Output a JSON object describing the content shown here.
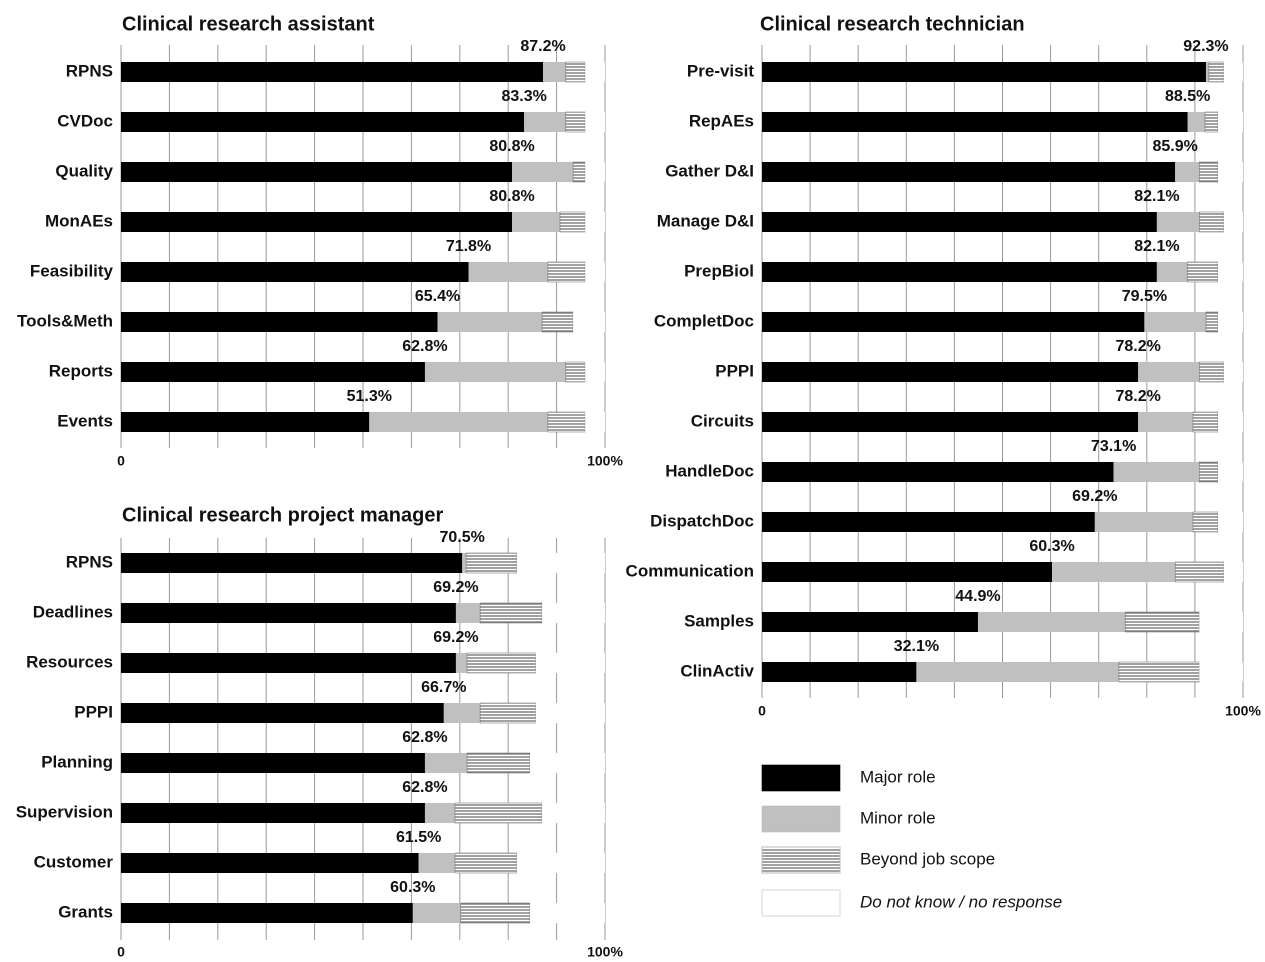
{
  "chart_data": [
    {
      "type": "stacked-bar-horizontal",
      "title": "Clinical research assistant",
      "categories": [
        "RPNS",
        "CVDoc",
        "Quality",
        "MonAEs",
        "Feasibility",
        "Tools&Meth",
        "Reports",
        "Events"
      ],
      "series": [
        {
          "name": "Major role",
          "color": "#000000",
          "values": [
            87.2,
            83.3,
            80.8,
            80.8,
            71.8,
            65.4,
            62.8,
            51.3
          ],
          "value_labels": [
            "87.2%",
            "83.3%",
            "80.8%",
            "80.8%",
            "71.8%",
            "65.4%",
            "62.8%",
            "51.3%"
          ]
        },
        {
          "name": "Minor role",
          "color": "#c0c0c0",
          "values": [
            4.7,
            8.6,
            12.6,
            9.9,
            16.4,
            21.6,
            29.1,
            36.9
          ]
        },
        {
          "name": "Beyond job scope",
          "color": "#ffffff",
          "pattern": "horizontal-lines",
          "values": [
            4.0,
            4.0,
            2.5,
            5.2,
            7.7,
            6.4,
            4.0,
            7.7
          ]
        },
        {
          "name": "Do not know / no response",
          "color": "#ffffff",
          "values": [
            4.1,
            4.1,
            4.1,
            4.1,
            4.1,
            6.6,
            4.1,
            4.1
          ]
        }
      ],
      "xlim": [
        0,
        100
      ],
      "xticks": [
        0,
        {
          "value": 100,
          "label": "100%"
        }
      ],
      "grid_step": 10
    },
    {
      "type": "stacked-bar-horizontal",
      "title": "Clinical research technician",
      "categories": [
        "Pre-visit",
        "RepAEs",
        "Gather D&I",
        "Manage D&I",
        "PrepBiol",
        "CompletDoc",
        "PPPI",
        "Circuits",
        "HandleDoc",
        "DispatchDoc",
        "Communication",
        "Samples",
        "ClinActiv"
      ],
      "series": [
        {
          "color": "#000000",
          "values": [
            92.3,
            88.5,
            85.9,
            82.1,
            82.1,
            79.5,
            78.2,
            78.2,
            73.1,
            69.2,
            60.3,
            44.9,
            32.1
          ],
          "value_labels": [
            "92.3%",
            "88.5%",
            "85.9%",
            "82.1%",
            "82.1%",
            "79.5%",
            "78.2%",
            "78.2%",
            "73.1%",
            "69.2%",
            "60.3%",
            "44.9%",
            "32.1%"
          ]
        },
        {
          "color": "#c0c0c0",
          "values": [
            0.6,
            3.6,
            5.0,
            8.8,
            6.3,
            12.8,
            12.7,
            11.4,
            17.8,
            20.4,
            25.6,
            30.6,
            42.1
          ]
        },
        {
          "color": "#ffffff",
          "pattern": "horizontal-lines",
          "values": [
            3.1,
            2.7,
            3.9,
            5.1,
            6.4,
            2.5,
            5.1,
            5.2,
            3.9,
            5.2,
            10.1,
            15.4,
            16.7
          ]
        },
        {
          "color": "#ffffff",
          "values": [
            4.0,
            5.2,
            5.2,
            4.0,
            5.2,
            5.2,
            4.0,
            5.2,
            5.2,
            5.2,
            4.0,
            9.1,
            9.1
          ]
        }
      ],
      "xlim": [
        0,
        100
      ],
      "xticks": [
        0,
        {
          "value": 100,
          "label": "100%"
        }
      ],
      "grid_step": 10
    },
    {
      "type": "stacked-bar-horizontal",
      "title": "Clinical research project manager",
      "categories": [
        "RPNS",
        "Deadlines",
        "Resources",
        "PPPI",
        "Planning",
        "Supervision",
        "Customer",
        "Grants"
      ],
      "series": [
        {
          "color": "#000000",
          "values": [
            70.5,
            69.2,
            69.2,
            66.7,
            62.8,
            62.8,
            61.5,
            60.3
          ],
          "value_labels": [
            "70.5%",
            "69.2%",
            "69.2%",
            "66.7%",
            "62.8%",
            "62.8%",
            "61.5%",
            "60.3%"
          ]
        },
        {
          "color": "#c0c0c0",
          "values": [
            0.8,
            5.0,
            2.3,
            7.5,
            8.7,
            6.2,
            7.5,
            9.9
          ]
        },
        {
          "color": "#ffffff",
          "pattern": "horizontal-lines",
          "values": [
            10.5,
            12.8,
            14.2,
            11.5,
            13.0,
            18.0,
            12.8,
            14.3
          ]
        },
        {
          "color": "#ffffff",
          "values": [
            18.2,
            13.0,
            14.3,
            14.3,
            15.5,
            13.0,
            18.2,
            15.5
          ]
        }
      ],
      "xlim": [
        0,
        100
      ],
      "xticks": [
        0,
        {
          "value": 100,
          "label": "100%"
        }
      ],
      "grid_step": 10
    }
  ]
}
